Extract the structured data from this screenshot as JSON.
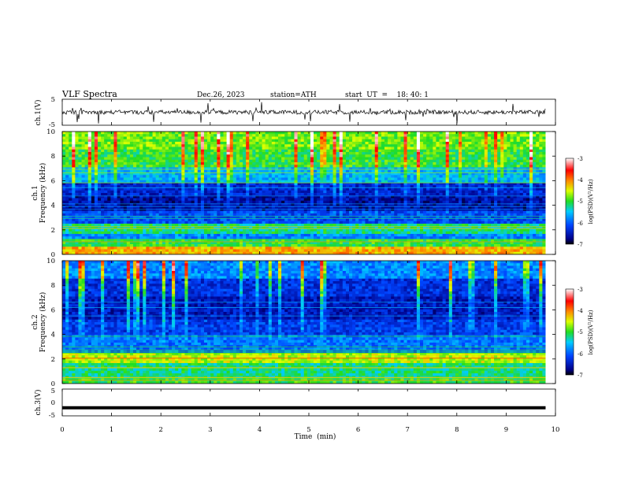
{
  "header": {
    "title": "VLF  Spectra",
    "date": "Dec.26, 2023",
    "station": "station=ATH",
    "start": "start  UT  =    18: 40: 1"
  },
  "chart_data": [
    {
      "type": "line",
      "panel": "ch1-waveform",
      "ylabel": "ch.1(V)",
      "ylim": [
        -5,
        5
      ],
      "yticks": [
        "5",
        "-5"
      ],
      "xlim": [
        0,
        10
      ],
      "x_extent": [
        0,
        9.8
      ],
      "approx_level": 0,
      "note_values": "noisy waveform fluctuating around 0 V with spikes up to ±5 V"
    },
    {
      "type": "heatmap",
      "panel": "ch1-spectrogram",
      "ylabel": "ch.1\nFrequency (kHz)",
      "ylabel_line1": "ch.1",
      "ylabel_line2": "Frequency (kHz)",
      "ylim": [
        0,
        10
      ],
      "yticks": [
        "0",
        "2",
        "4",
        "6",
        "8",
        "10"
      ],
      "xlim": [
        0,
        10
      ],
      "x_extent": [
        0,
        9.8
      ],
      "colorbar": {
        "label": "log(PSD)(V²/Hz)",
        "range": [
          -7,
          -3
        ],
        "ticks": [
          "-3",
          "-4",
          "-5",
          "-6",
          "-7"
        ]
      },
      "band_levels": [
        {
          "f0": 0.0,
          "f1": 0.6,
          "level": -4.2
        },
        {
          "f0": 0.6,
          "f1": 1.2,
          "level": -5.0
        },
        {
          "f0": 1.2,
          "f1": 1.6,
          "level": -5.8
        },
        {
          "f0": 1.6,
          "f1": 2.4,
          "level": -5.2
        },
        {
          "f0": 2.4,
          "f1": 3.5,
          "level": -6.1
        },
        {
          "f0": 3.5,
          "f1": 4.8,
          "level": -6.6
        },
        {
          "f0": 4.8,
          "f1": 5.8,
          "level": -6.4
        },
        {
          "f0": 5.8,
          "f1": 7.0,
          "level": -5.6
        },
        {
          "f0": 7.0,
          "f1": 8.5,
          "level": -5.0
        },
        {
          "f0": 8.5,
          "f1": 10.0,
          "level": -4.8
        }
      ]
    },
    {
      "type": "heatmap",
      "panel": "ch2-spectrogram",
      "ylabel": "ch.2\nFrequency (kHz)",
      "ylabel_line1": "ch.2",
      "ylabel_line2": "Frequency (kHz)",
      "ylim": [
        0,
        10
      ],
      "yticks": [
        "0",
        "2",
        "4",
        "6",
        "8",
        "10"
      ],
      "xlim": [
        0,
        10
      ],
      "x_extent": [
        0,
        9.8
      ],
      "colorbar": {
        "label": "log(PSD)(V²/Hz)",
        "range": [
          -7,
          -3
        ],
        "ticks": [
          "-3",
          "-4",
          "-5",
          "-6",
          "-7"
        ]
      },
      "band_levels": [
        {
          "f0": 0.0,
          "f1": 0.4,
          "level": -5.0
        },
        {
          "f0": 0.4,
          "f1": 1.6,
          "level": -5.2
        },
        {
          "f0": 1.6,
          "f1": 2.4,
          "level": -4.6
        },
        {
          "f0": 2.4,
          "f1": 4.0,
          "level": -5.9
        },
        {
          "f0": 4.0,
          "f1": 5.2,
          "level": -6.2
        },
        {
          "f0": 5.2,
          "f1": 7.0,
          "level": -6.5
        },
        {
          "f0": 7.0,
          "f1": 8.5,
          "level": -6.3
        },
        {
          "f0": 8.5,
          "f1": 10.0,
          "level": -5.8
        }
      ]
    },
    {
      "type": "line",
      "panel": "ch3-waveform",
      "ylabel": "ch.3(V)",
      "ylim": [
        -5,
        5
      ],
      "yticks": [
        "5",
        "0",
        "-5"
      ],
      "xlim": [
        0,
        10
      ],
      "x_extent": [
        0,
        9.8
      ],
      "approx_level": -2,
      "xlabel": "Time  (min)",
      "xticks": [
        "0",
        "1",
        "2",
        "3",
        "4",
        "5",
        "6",
        "7",
        "8",
        "9",
        "10"
      ]
    }
  ]
}
